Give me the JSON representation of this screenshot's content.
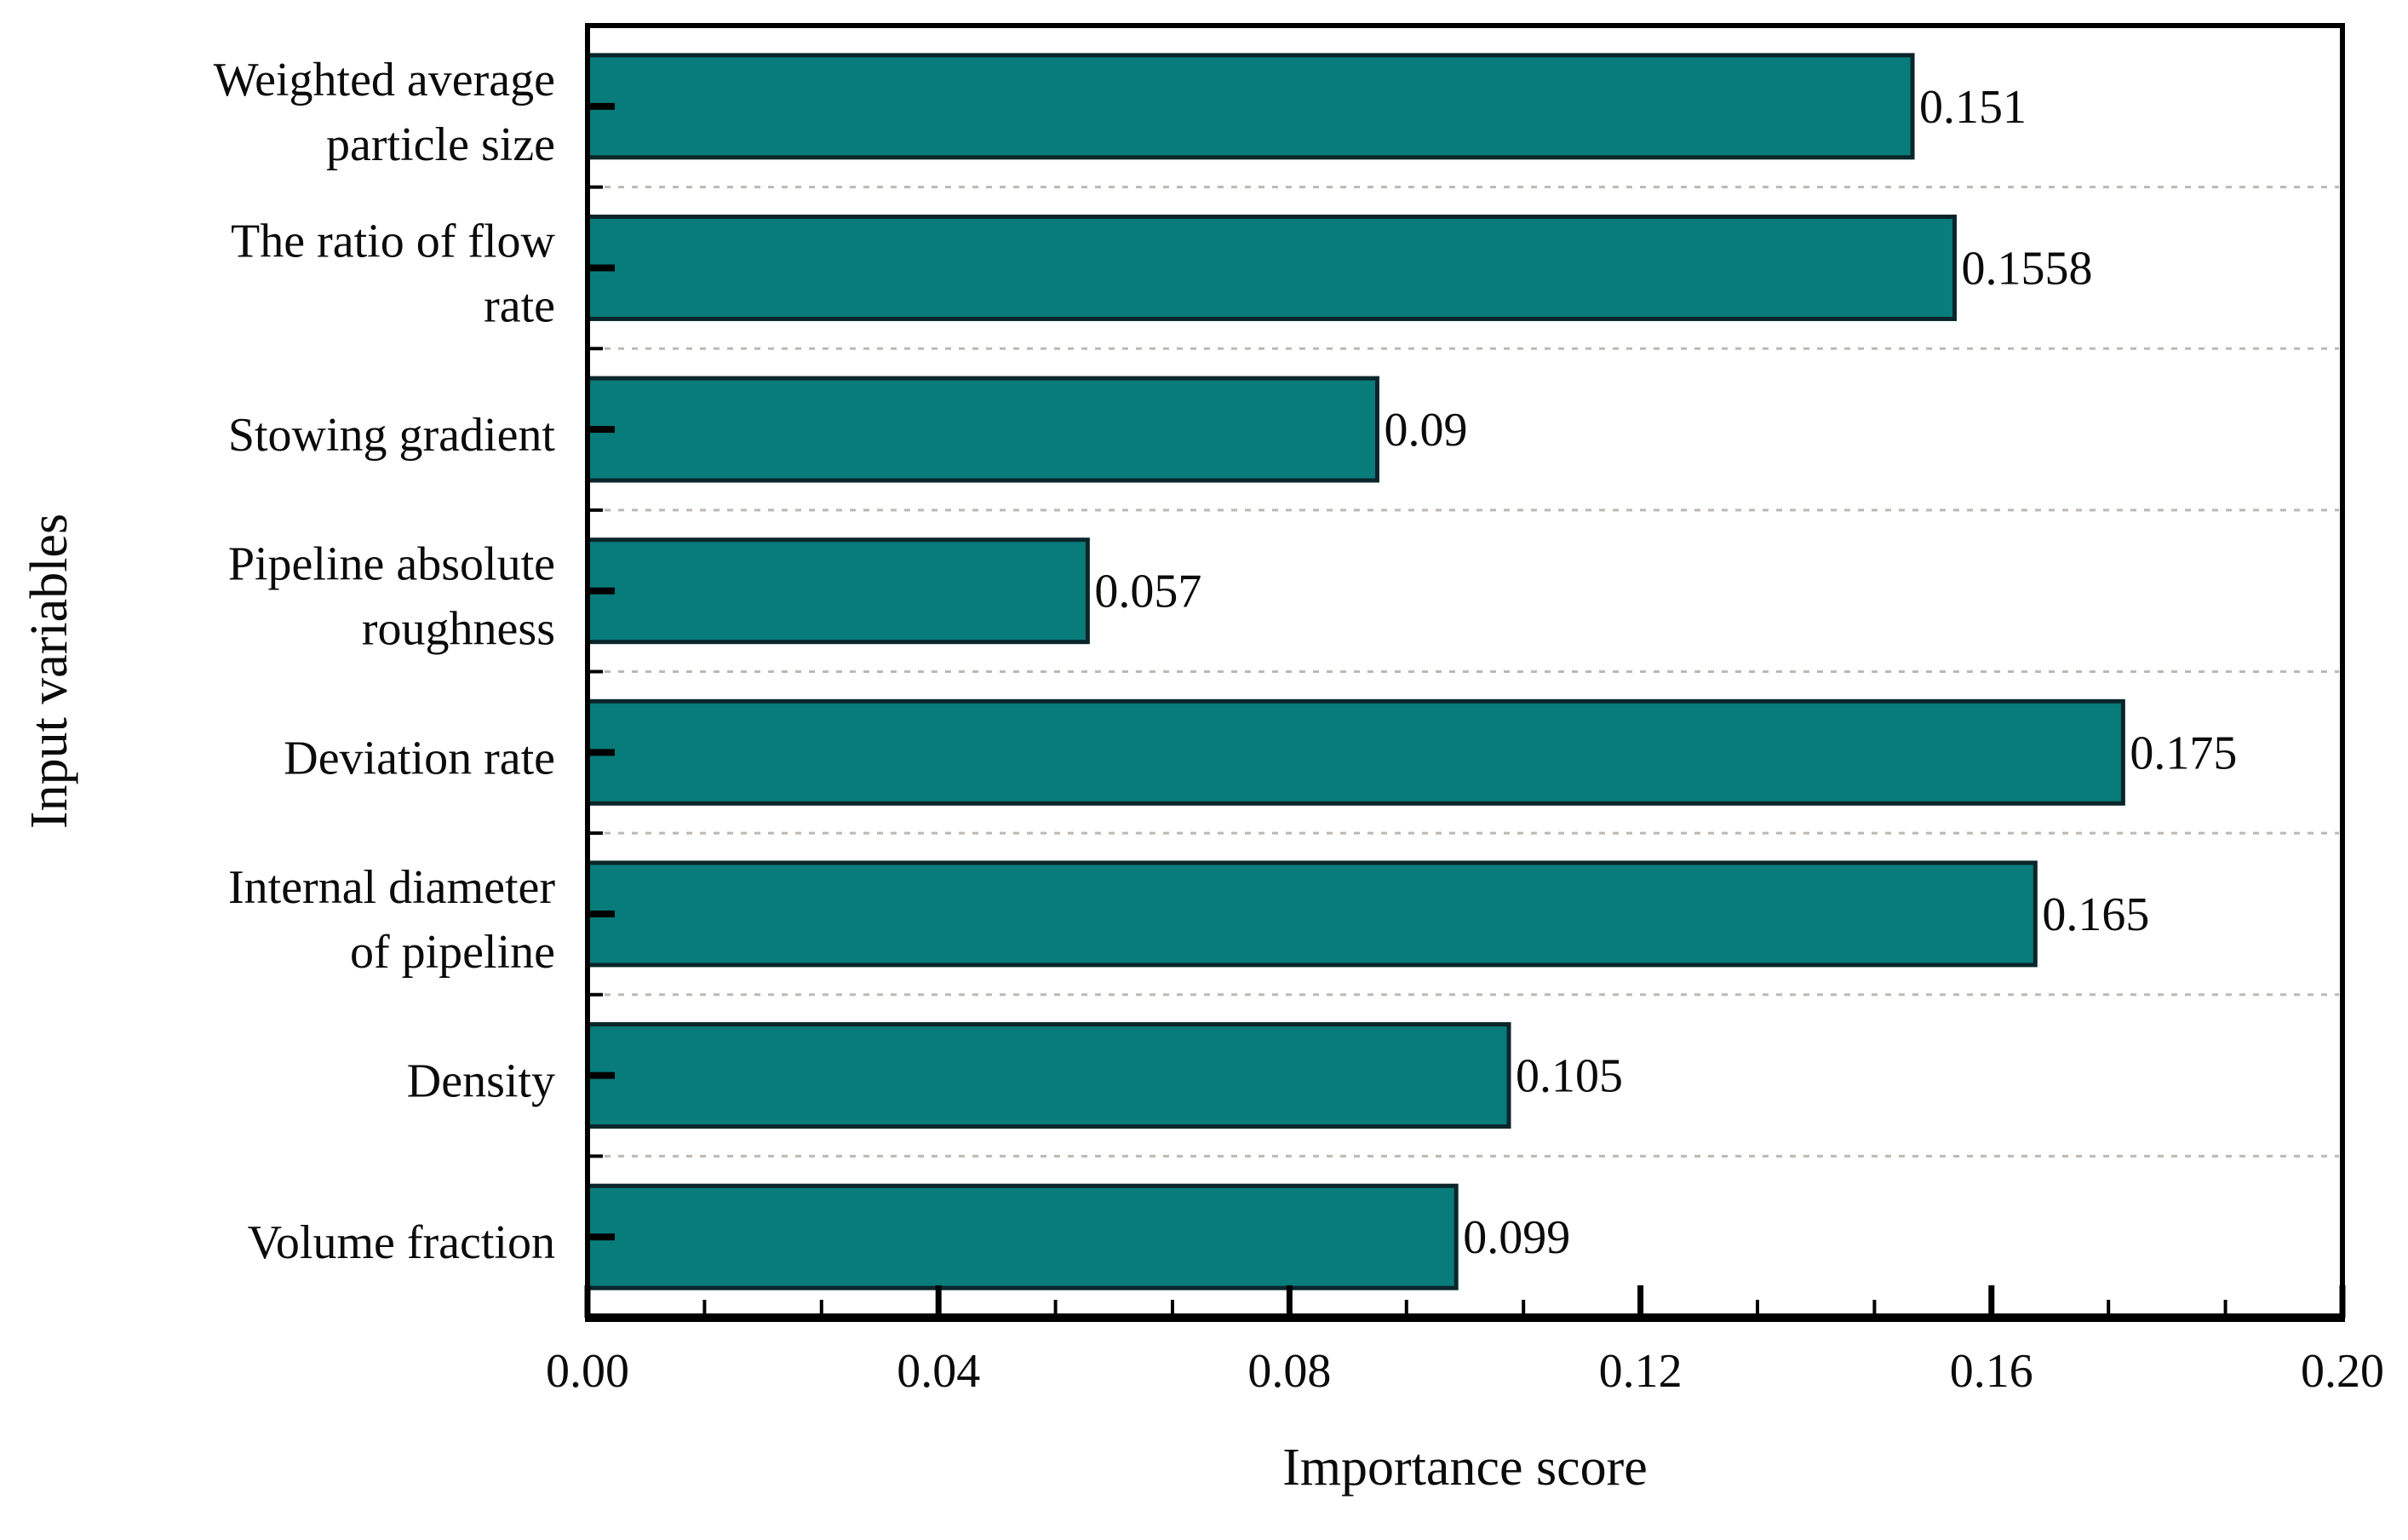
{
  "chart_data": {
    "type": "bar",
    "orientation": "horizontal",
    "title": "",
    "xlabel": "Importance score",
    "ylabel": "Input variables",
    "categories": [
      "Weighted average particle size",
      "The ratio of flow rate",
      "Stowing gradient",
      "Pipeline absolute roughness",
      "Deviation rate",
      "Internal diameter of pipeline",
      "Density",
      "Volume fraction"
    ],
    "category_label_lines": [
      [
        "Weighted average",
        "particle size"
      ],
      [
        "The ratio of flow",
        "rate"
      ],
      [
        "Stowing gradient"
      ],
      [
        "Pipeline absolute",
        "roughness"
      ],
      [
        "Deviation rate"
      ],
      [
        "Internal diameter",
        "of pipeline"
      ],
      [
        "Density"
      ],
      [
        "Volume fraction"
      ]
    ],
    "values": [
      0.151,
      0.1558,
      0.09,
      0.057,
      0.175,
      0.165,
      0.105,
      0.099
    ],
    "value_labels": [
      "0.151",
      "0.1558",
      "0.09",
      "0.057",
      "0.175",
      "0.165",
      "0.105",
      "0.099"
    ],
    "xlim": [
      0,
      0.2
    ],
    "x_tick_values": [
      0,
      0.04,
      0.08,
      0.12,
      0.16,
      0.2
    ],
    "x_tick_labels": [
      "0.00",
      "0.04",
      "0.08",
      "0.12",
      "0.16",
      "0.20"
    ],
    "x_minor_ticks_per_interval": 2,
    "grid": "dashed horizontal lines between categories",
    "legend": "none",
    "colors": {
      "bar_fill": "#087c7a",
      "bar_edge": "#0a262b",
      "axis": "#000000",
      "grid": "#bdb8b2",
      "text": "#0b0b0b",
      "background": "#ffffff"
    }
  }
}
